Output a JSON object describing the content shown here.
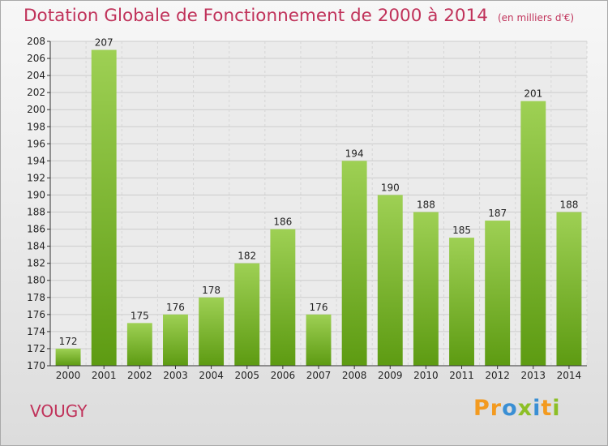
{
  "header": {
    "title": "Dotation Globale de Fonctionnement de 2000 à 2014",
    "subtitle": "(en milliers d'€)"
  },
  "footer": {
    "commune": "VOUGY",
    "logo": "Proxiti"
  },
  "colors": {
    "title": "#c0325a",
    "bar_light": "#9ed054",
    "bar_dark": "#5d9b12",
    "grid": "#cccccc"
  },
  "chart_data": {
    "type": "bar",
    "title": "Dotation Globale de Fonctionnement de 2000 à 2014",
    "subtitle": "(en milliers d'€)",
    "categories": [
      "2000",
      "2001",
      "2002",
      "2003",
      "2004",
      "2005",
      "2006",
      "2007",
      "2008",
      "2009",
      "2010",
      "2011",
      "2012",
      "2013",
      "2014"
    ],
    "values": [
      172,
      207,
      175,
      176,
      178,
      182,
      186,
      176,
      194,
      190,
      188,
      185,
      187,
      201,
      188
    ],
    "ylim": [
      170,
      208
    ],
    "yticks": [
      170,
      172,
      174,
      176,
      178,
      180,
      182,
      184,
      186,
      188,
      190,
      192,
      194,
      196,
      198,
      200,
      202,
      204,
      206,
      208
    ],
    "grid": true,
    "data_labels": true
  }
}
